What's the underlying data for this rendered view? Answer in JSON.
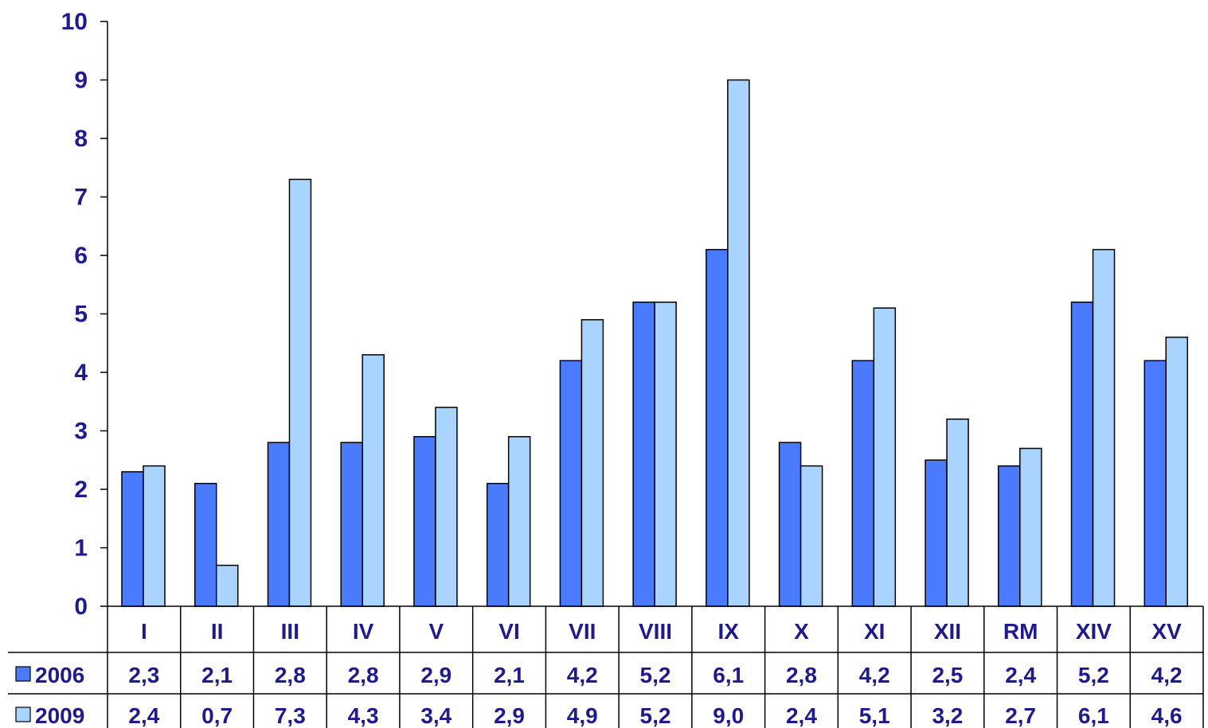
{
  "chart_data": {
    "type": "bar",
    "categories": [
      "I",
      "II",
      "III",
      "IV",
      "V",
      "VI",
      "VII",
      "VIII",
      "IX",
      "X",
      "XI",
      "XII",
      "RM",
      "XIV",
      "XV"
    ],
    "series": [
      {
        "name": "2006",
        "color": "#4a7bff",
        "values": [
          2.3,
          2.1,
          2.8,
          2.8,
          2.9,
          2.1,
          4.2,
          5.2,
          6.1,
          2.8,
          4.2,
          2.5,
          2.4,
          5.2,
          4.2
        ]
      },
      {
        "name": "2009",
        "color": "#a8d4ff",
        "values": [
          2.4,
          0.7,
          7.3,
          4.3,
          3.4,
          2.9,
          4.9,
          5.2,
          9.0,
          2.4,
          5.1,
          3.2,
          2.7,
          6.1,
          4.6
        ]
      }
    ],
    "table_labels": {
      "2006": [
        "2,3",
        "2,1",
        "2,8",
        "2,8",
        "2,9",
        "2,1",
        "4,2",
        "5,2",
        "6,1",
        "2,8",
        "4,2",
        "2,5",
        "2,4",
        "5,2",
        "4,2"
      ],
      "2009": [
        "2,4",
        "0,7",
        "7,3",
        "4,3",
        "3,4",
        "2,9",
        "4,9",
        "5,2",
        "9,0",
        "2,4",
        "5,1",
        "3,2",
        "2,7",
        "6,1",
        "4,6"
      ]
    },
    "yticks": [
      "0",
      "1",
      "2",
      "3",
      "4",
      "5",
      "6",
      "7",
      "8",
      "9",
      "10"
    ],
    "ylim": [
      0,
      10
    ],
    "grid": false,
    "legend": "bottom-left data table"
  }
}
